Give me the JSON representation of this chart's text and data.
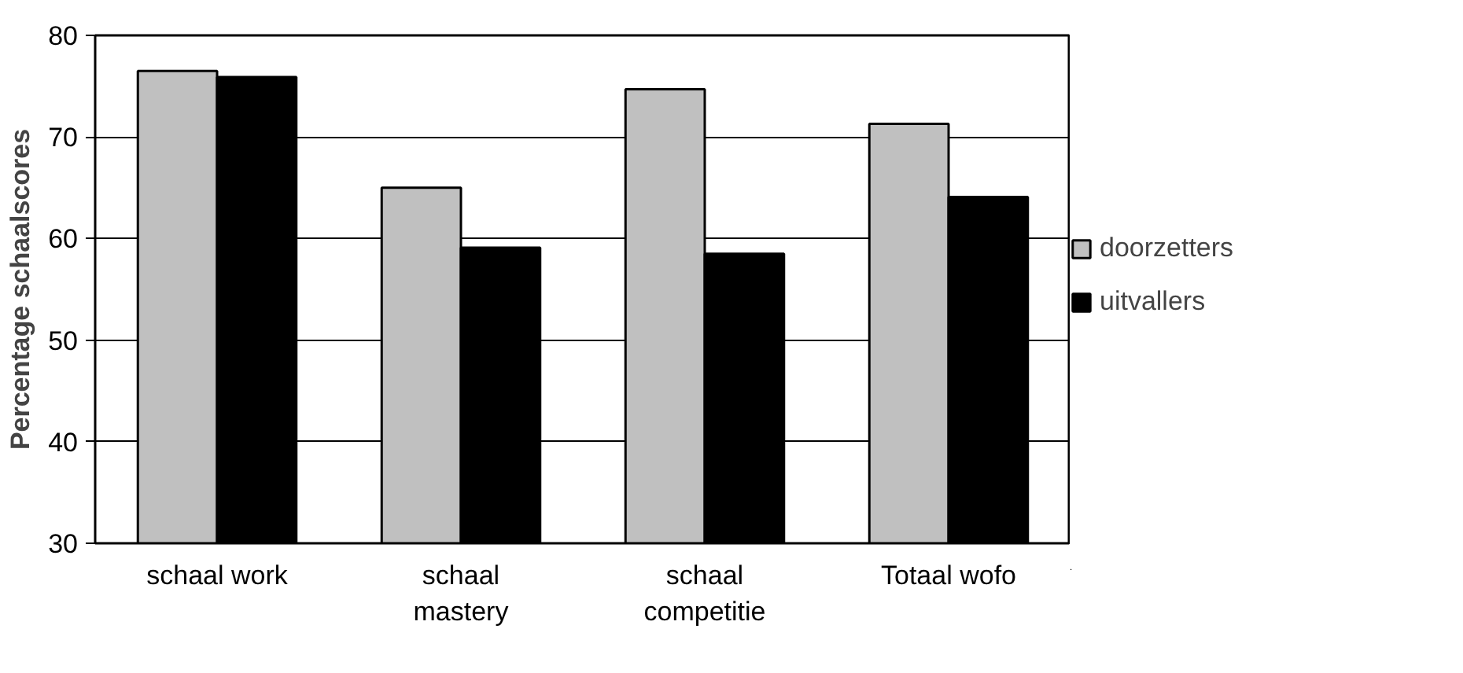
{
  "chart_data": {
    "type": "bar",
    "ylabel": "Percentage schaalscores",
    "categories": [
      "schaal work",
      "schaal mastery",
      "schaal competitie",
      "Totaal wofo"
    ],
    "series": [
      {
        "name": "doorzetters",
        "color": "#c0c0c0",
        "values": [
          76.5,
          65.0,
          74.7,
          71.3
        ]
      },
      {
        "name": "uitvallers",
        "color": "#000000",
        "values": [
          75.9,
          59.1,
          58.5,
          64.1
        ]
      }
    ],
    "ylim": [
      30,
      80
    ],
    "yticks": [
      30,
      40,
      50,
      60,
      70,
      80
    ],
    "grid": "y",
    "legend": "right"
  }
}
